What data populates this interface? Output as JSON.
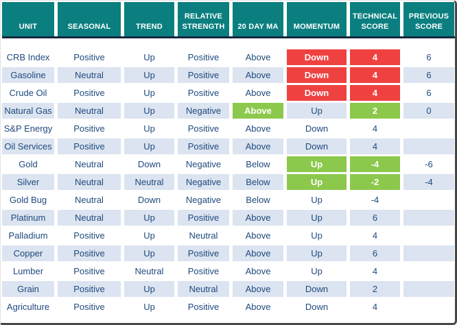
{
  "colors": {
    "header_bg": "#0B7F7F",
    "header_text": "#FFFFFF",
    "header_underline": "#16283E",
    "row_alt_bg": "#DBE4F0",
    "cell_text": "#1F497D",
    "negative_highlight": "#F04141",
    "positive_highlight": "#8CC84B",
    "highlight_text": "#FFFFFF",
    "frame_border": "#474747"
  },
  "chart_data": {
    "type": "table",
    "columns": [
      "UNIT",
      "SEASONAL",
      "TREND",
      "RELATIVE STRENGTH",
      "20 DAY MA",
      "MOMENTUM",
      "TECHNICAL SCORE",
      "PREVIOUS SCORE"
    ],
    "column_keys": [
      "unit",
      "seasonal",
      "trend",
      "relative_strength",
      "ma_20_day",
      "momentum",
      "technical_score",
      "previous_score"
    ],
    "rows": [
      {
        "unit": "CRB Index",
        "seasonal": "Positive",
        "trend": "Up",
        "relative_strength": "Positive",
        "ma_20_day": "Above",
        "momentum": "Down",
        "technical_score": "4",
        "previous_score": "6",
        "highlights": {
          "momentum": "red",
          "technical_score": "red"
        }
      },
      {
        "unit": "Gasoline",
        "seasonal": "Neutral",
        "trend": "Up",
        "relative_strength": "Positive",
        "ma_20_day": "Above",
        "momentum": "Down",
        "technical_score": "4",
        "previous_score": "6",
        "highlights": {
          "momentum": "red",
          "technical_score": "red"
        }
      },
      {
        "unit": "Crude Oil",
        "seasonal": "Positive",
        "trend": "Up",
        "relative_strength": "Positive",
        "ma_20_day": "Above",
        "momentum": "Down",
        "technical_score": "4",
        "previous_score": "6",
        "highlights": {
          "momentum": "red",
          "technical_score": "red"
        }
      },
      {
        "unit": "Natural Gas",
        "seasonal": "Neutral",
        "trend": "Up",
        "relative_strength": "Negative",
        "ma_20_day": "Above",
        "momentum": "Up",
        "technical_score": "2",
        "previous_score": "0",
        "highlights": {
          "ma_20_day": "green",
          "technical_score": "green"
        }
      },
      {
        "unit": "S&P Energy",
        "seasonal": "Positive",
        "trend": "Up",
        "relative_strength": "Positive",
        "ma_20_day": "Above",
        "momentum": "Down",
        "technical_score": "4",
        "previous_score": "",
        "highlights": {}
      },
      {
        "unit": "Oil Services",
        "seasonal": "Positive",
        "trend": "Up",
        "relative_strength": "Positive",
        "ma_20_day": "Above",
        "momentum": "Down",
        "technical_score": "4",
        "previous_score": "",
        "highlights": {}
      },
      {
        "unit": "Gold",
        "seasonal": "Neutral",
        "trend": "Down",
        "relative_strength": "Negative",
        "ma_20_day": "Below",
        "momentum": "Up",
        "technical_score": "-4",
        "previous_score": "-6",
        "highlights": {
          "momentum": "green",
          "technical_score": "green"
        }
      },
      {
        "unit": "Silver",
        "seasonal": "Neutral",
        "trend": "Neutral",
        "relative_strength": "Negative",
        "ma_20_day": "Below",
        "momentum": "Up",
        "technical_score": "-2",
        "previous_score": "-4",
        "highlights": {
          "momentum": "green",
          "technical_score": "green"
        }
      },
      {
        "unit": "Gold Bug",
        "seasonal": "Neutral",
        "trend": "Down",
        "relative_strength": "Negative",
        "ma_20_day": "Below",
        "momentum": "Up",
        "technical_score": "-4",
        "previous_score": "",
        "highlights": {}
      },
      {
        "unit": "Platinum",
        "seasonal": "Neutral",
        "trend": "Up",
        "relative_strength": "Positive",
        "ma_20_day": "Above",
        "momentum": "Up",
        "technical_score": "6",
        "previous_score": "",
        "highlights": {}
      },
      {
        "unit": "Palladium",
        "seasonal": "Positive",
        "trend": "Up",
        "relative_strength": "Neutral",
        "ma_20_day": "Above",
        "momentum": "Up",
        "technical_score": "4",
        "previous_score": "",
        "highlights": {}
      },
      {
        "unit": "Copper",
        "seasonal": "Positive",
        "trend": "Up",
        "relative_strength": "Positive",
        "ma_20_day": "Above",
        "momentum": "Up",
        "technical_score": "6",
        "previous_score": "",
        "highlights": {}
      },
      {
        "unit": "Lumber",
        "seasonal": "Positive",
        "trend": "Neutral",
        "relative_strength": "Positive",
        "ma_20_day": "Above",
        "momentum": "Up",
        "technical_score": "4",
        "previous_score": "",
        "highlights": {}
      },
      {
        "unit": "Grain",
        "seasonal": "Positive",
        "trend": "Up",
        "relative_strength": "Neutral",
        "ma_20_day": "Above",
        "momentum": "Down",
        "technical_score": "2",
        "previous_score": "",
        "highlights": {}
      },
      {
        "unit": "Agriculture",
        "seasonal": "Positive",
        "trend": "Up",
        "relative_strength": "Positive",
        "ma_20_day": "Above",
        "momentum": "Down",
        "technical_score": "4",
        "previous_score": "",
        "highlights": {}
      }
    ]
  }
}
